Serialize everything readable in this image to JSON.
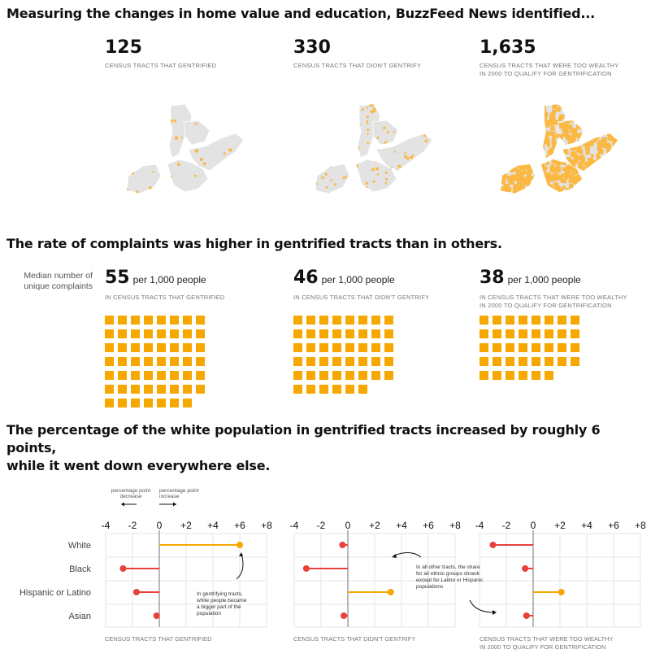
{
  "section1": {
    "heading": "Measuring the changes in home value and education, BuzzFeed News identified...",
    "stats": [
      {
        "value": "125",
        "label_line1": "CENSUS TRACTS THAT GENTRIFIED",
        "label_line2": ""
      },
      {
        "value": "330",
        "label_line1": "CENSUS TRACTS THAT DIDN'T GENTRIFY",
        "label_line2": ""
      },
      {
        "value": "1,635",
        "label_line1": "CENSUS TRACTS THAT WERE TOO WEALTHY",
        "label_line2": "IN 2000 TO QUALIFY FOR GENTRIFICATION"
      }
    ],
    "map_colors": {
      "base": "#e3e3e3",
      "highlight": "#fbb843"
    },
    "map_highlight_share": [
      0.06,
      0.16,
      0.78
    ]
  },
  "section2": {
    "heading": "The rate of complaints was higher in gentrified tracts than in others.",
    "side_label_line1": "Median number of",
    "side_label_line2": "unique complaints",
    "unit": "per 1,000 people",
    "groups": [
      {
        "value": "55",
        "label_line1": "IN CENSUS TRACTS THAT GENTRIFIED",
        "label_line2": "",
        "squares": 55
      },
      {
        "value": "46",
        "label_line1": "IN CENSUS TRACTS THAT DIDN'T GENTRIFY",
        "label_line2": "",
        "squares": 46
      },
      {
        "value": "38",
        "label_line1": "IN CENSUS TRACTS THAT WERE TOO WEALTHY",
        "label_line2": "IN 2000 TO QUALIFY FOR GENTRIFICATION",
        "squares": 38
      }
    ],
    "square_color": "#f6a700"
  },
  "section3": {
    "heading_line1": "The percentage of the white population in gentrified tracts increased by roughly 6 points,",
    "heading_line2": "while it went down everywhere else.",
    "legend_decrease_line1": "percentage point",
    "legend_decrease_line2": "decrease",
    "legend_increase_line1": "percentage point",
    "legend_increase_line2": "increase",
    "annotation1_lines": [
      "In gentrifying tracts,",
      "white people became",
      "a bigger part of the",
      "population"
    ],
    "annotation2_lines": [
      "In all other tracts, the share",
      "for all ethnic groups shrank",
      "except for Latino or Hispanic",
      "populations"
    ]
  },
  "chart_data": [
    {
      "type": "dot-plot",
      "title": "",
      "xlabel": "CENSUS TRACTS THAT GENTRIFIED",
      "xlim": [
        -4,
        8
      ],
      "xticks": [
        "-4",
        "-2",
        "0",
        "+2",
        "+4",
        "+6",
        "+8"
      ],
      "categories": [
        "White",
        "Black",
        "Hispanic or Latino",
        "Asian"
      ],
      "values": [
        6.0,
        -2.7,
        -1.7,
        -0.2
      ],
      "positive_color": "#f6a700",
      "negative_color": "#e8413c"
    },
    {
      "type": "dot-plot",
      "title": "",
      "xlabel": "CENSUS TRACTS THAT DIDN'T GENTRIFY",
      "xlim": [
        -4,
        8
      ],
      "xticks": [
        "-4",
        "-2",
        "0",
        "+2",
        "+4",
        "+6",
        "+8"
      ],
      "categories": [
        "White",
        "Black",
        "Hispanic or Latino",
        "Asian"
      ],
      "values": [
        -0.4,
        -3.1,
        3.2,
        -0.3
      ],
      "positive_color": "#f6a700",
      "negative_color": "#e8413c"
    },
    {
      "type": "dot-plot",
      "title": "",
      "xlabel_line1": "CENSUS TRACTS THAT WERE TOO WEALTHY",
      "xlabel_line2": "IN 2000 TO QUALIFY FOR GENTRIFICATION",
      "xlim": [
        -4,
        8
      ],
      "xticks": [
        "-4",
        "-2",
        "0",
        "+2",
        "+4",
        "+6",
        "+8"
      ],
      "categories": [
        "White",
        "Black",
        "Hispanic or Latino",
        "Asian"
      ],
      "values": [
        -3.0,
        -0.6,
        2.1,
        -0.5
      ],
      "positive_color": "#f6a700",
      "negative_color": "#e8413c"
    }
  ]
}
